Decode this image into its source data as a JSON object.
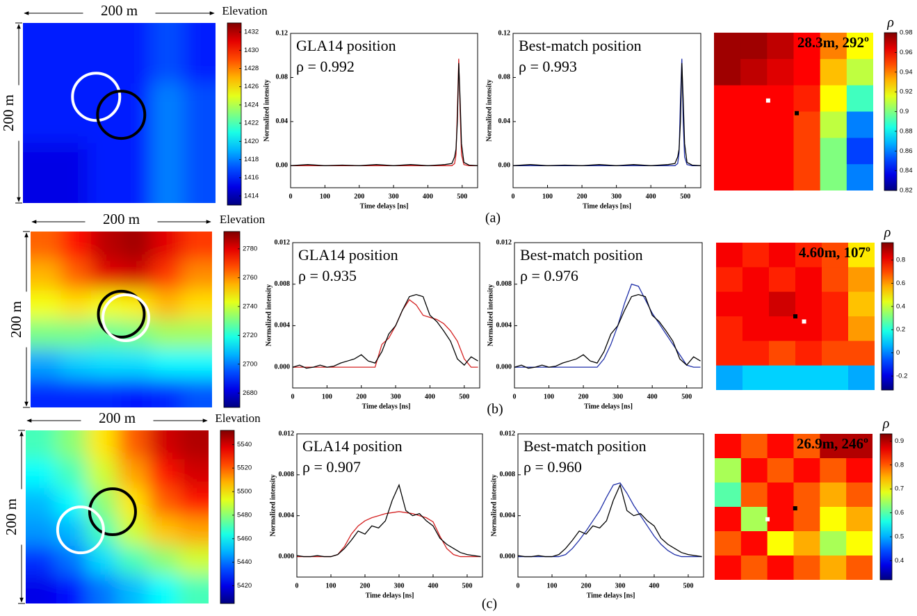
{
  "panel_labels": [
    "(a)",
    "(b)",
    "(c)"
  ],
  "chart_data": [
    {
      "type": "heatmap",
      "colormap": "jet",
      "x_label": "200 m",
      "y_label": "200 m",
      "colorbar_label": "Elevation",
      "zlim": [
        1413,
        1433
      ],
      "zticks": [
        1414,
        1416,
        1418,
        1420,
        1422,
        1424,
        1426,
        1428,
        1430,
        1432
      ],
      "z": [
        [
          1416,
          1416,
          1416,
          1416,
          1417,
          1416
        ],
        [
          1416,
          1416,
          1416,
          1416,
          1417,
          1416
        ],
        [
          1416,
          1416,
          1416,
          1416,
          1418,
          1417
        ],
        [
          1416,
          1416,
          1416,
          1416,
          1418,
          1417
        ],
        [
          1415,
          1415,
          1416,
          1416,
          1418,
          1417
        ],
        [
          1415,
          1415,
          1416,
          1416,
          1418,
          1417
        ]
      ]
    },
    {
      "type": "line",
      "title": "GLA14 position",
      "subtitle": "ρ = 0.992",
      "x_label": "Time delays [ns]",
      "y_label": "Normalized intensity",
      "xlim": [
        0,
        545
      ],
      "xticks": [
        0,
        100,
        200,
        300,
        400,
        500
      ],
      "ylim": [
        -0.02,
        0.12
      ],
      "yticks": [
        {
          "value": 0,
          "label": "0.00"
        },
        0.04,
        0.08,
        0.12
      ],
      "x": [
        0,
        50,
        100,
        150,
        200,
        250,
        300,
        350,
        400,
        450,
        470,
        478,
        482,
        486,
        490,
        494,
        498,
        505,
        520,
        545
      ],
      "series": [
        {
          "color": "#000000",
          "values": [
            0,
            0.001,
            0,
            0.0005,
            0,
            0.001,
            0,
            0.001,
            0,
            0.001,
            0.002,
            0.008,
            0.015,
            0.04,
            0.093,
            0.06,
            0.02,
            0.003,
            0.0005,
            0
          ]
        },
        {
          "color": "#d42020",
          "values": [
            0,
            0,
            0,
            0,
            0,
            0,
            0,
            0,
            0,
            0,
            0,
            0.002,
            0.01,
            0.05,
            0.097,
            0.05,
            0.01,
            0.001,
            0,
            0
          ]
        }
      ]
    },
    {
      "type": "line",
      "title": "Best-match position",
      "subtitle": "ρ = 0.993",
      "x_label": "Time delays [ns]",
      "y_label": "Normalized intensity",
      "xlim": [
        0,
        545
      ],
      "xticks": [
        0,
        100,
        200,
        300,
        400,
        500
      ],
      "ylim": [
        -0.02,
        0.12
      ],
      "yticks": [
        {
          "value": 0,
          "label": "0.00"
        },
        0.04,
        0.08,
        0.12
      ],
      "x": [
        0,
        50,
        100,
        150,
        200,
        250,
        300,
        350,
        400,
        450,
        470,
        478,
        482,
        486,
        490,
        494,
        498,
        505,
        520,
        545
      ],
      "series": [
        {
          "color": "#000000",
          "values": [
            0,
            0.001,
            0,
            0.0005,
            0,
            0.001,
            0,
            0.001,
            0,
            0.001,
            0.002,
            0.008,
            0.015,
            0.04,
            0.093,
            0.06,
            0.02,
            0.003,
            0.0005,
            0
          ]
        },
        {
          "color": "#1f2fa8",
          "values": [
            0,
            0,
            0,
            0,
            0,
            0,
            0,
            0,
            0,
            0,
            0,
            0.002,
            0.012,
            0.06,
            0.097,
            0.04,
            0.008,
            0.001,
            0,
            0
          ]
        }
      ]
    },
    {
      "type": "heatmap",
      "colormap": "jet",
      "colorbar_label": "ρ",
      "annotation": "28.3m, 292º",
      "zlim": [
        0.82,
        0.98
      ],
      "zticks": [
        0.82,
        0.84,
        0.86,
        0.88,
        0.9,
        0.92,
        0.94,
        0.96,
        0.98
      ],
      "z": [
        [
          0.975,
          0.975,
          0.97,
          0.96,
          0.94,
          0.92
        ],
        [
          0.975,
          0.97,
          0.965,
          0.96,
          0.93,
          0.91
        ],
        [
          0.96,
          0.96,
          0.96,
          0.955,
          0.92,
          0.89
        ],
        [
          0.96,
          0.96,
          0.96,
          0.95,
          0.91,
          0.86
        ],
        [
          0.96,
          0.96,
          0.96,
          0.95,
          0.9,
          0.85
        ],
        [
          0.96,
          0.96,
          0.96,
          0.95,
          0.9,
          0.86
        ]
      ]
    },
    {
      "type": "heatmap",
      "colormap": "jet",
      "x_label": "200 m",
      "y_label": "200 m",
      "colorbar_label": "Elevation",
      "zlim": [
        2670,
        2792
      ],
      "zticks": [
        2680,
        2700,
        2720,
        2740,
        2760,
        2780
      ],
      "z": [
        [
          2765,
          2775,
          2785,
          2788,
          2780,
          2770
        ],
        [
          2755,
          2765,
          2780,
          2782,
          2770,
          2760
        ],
        [
          2745,
          2750,
          2745,
          2748,
          2755,
          2750
        ],
        [
          2730,
          2730,
          2728,
          2730,
          2735,
          2735
        ],
        [
          2705,
          2710,
          2712,
          2712,
          2715,
          2715
        ],
        [
          2690,
          2690,
          2690,
          2688,
          2690,
          2695
        ]
      ]
    },
    {
      "type": "line",
      "title": "GLA14 position",
      "subtitle": "ρ = 0.935",
      "x_label": "Time delays [ns]",
      "y_label": "Normalized intensity",
      "xlim": [
        0,
        545
      ],
      "xticks": [
        0,
        100,
        200,
        300,
        400,
        500
      ],
      "ylim": [
        -0.002,
        0.012
      ],
      "yticks": [
        {
          "value": 0,
          "label": "0.000"
        },
        0.004,
        0.008,
        0.012
      ],
      "x": [
        0,
        20,
        40,
        60,
        80,
        100,
        120,
        140,
        160,
        180,
        200,
        220,
        240,
        260,
        280,
        300,
        320,
        340,
        360,
        380,
        400,
        420,
        440,
        460,
        480,
        500,
        520,
        540
      ],
      "series": [
        {
          "color": "#000000",
          "values": [
            0,
            0.0002,
            -0.0001,
            0,
            0.0002,
            0,
            0.0001,
            0.0004,
            0.0006,
            0.0008,
            0.0012,
            0.0006,
            0.0004,
            0.0015,
            0.0032,
            0.004,
            0.0055,
            0.0068,
            0.007,
            0.0068,
            0.005,
            0.0044,
            0.0035,
            0.0025,
            0.0008,
            0.0002,
            0.001,
            0.0006
          ]
        },
        {
          "color": "#d42020",
          "values": [
            0,
            0,
            0,
            0,
            0,
            0,
            0,
            0,
            0,
            0,
            0,
            0,
            0,
            0.0022,
            0.0028,
            0.004,
            0.0055,
            0.0065,
            0.006,
            0.005,
            0.0048,
            0.0046,
            0.0042,
            0.0035,
            0.0025,
            0.0008,
            0,
            0
          ]
        }
      ]
    },
    {
      "type": "line",
      "title": "Best-match position",
      "subtitle": "ρ = 0.976",
      "x_label": "Time delays [ns]",
      "y_label": "Normalized intensity",
      "xlim": [
        0,
        545
      ],
      "xticks": [
        0,
        100,
        200,
        300,
        400,
        500
      ],
      "ylim": [
        -0.002,
        0.012
      ],
      "yticks": [
        {
          "value": 0,
          "label": "0.000"
        },
        0.004,
        0.008,
        0.012
      ],
      "x": [
        0,
        20,
        40,
        60,
        80,
        100,
        120,
        140,
        160,
        180,
        200,
        220,
        240,
        260,
        280,
        300,
        320,
        340,
        360,
        380,
        400,
        420,
        440,
        460,
        480,
        500,
        520,
        540
      ],
      "series": [
        {
          "color": "#000000",
          "values": [
            0,
            0.0002,
            -0.0001,
            0,
            0.0002,
            0,
            0.0001,
            0.0004,
            0.0006,
            0.0008,
            0.0012,
            0.0006,
            0.0004,
            0.0015,
            0.0032,
            0.004,
            0.0055,
            0.0068,
            0.007,
            0.0068,
            0.005,
            0.0044,
            0.0035,
            0.0025,
            0.0008,
            0.0002,
            0.001,
            0.0006
          ]
        },
        {
          "color": "#1f2fa8",
          "values": [
            0,
            0,
            0,
            0,
            0,
            0,
            0,
            0,
            0,
            0,
            0,
            0,
            0,
            0.0008,
            0.0022,
            0.004,
            0.0062,
            0.008,
            0.0078,
            0.0065,
            0.0052,
            0.0042,
            0.0032,
            0.0022,
            0.0012,
            0.0002,
            0,
            0
          ]
        }
      ]
    },
    {
      "type": "heatmap",
      "colormap": "jet",
      "colorbar_label": "ρ",
      "annotation": "4.60m, 107º",
      "zlim": [
        -0.32,
        0.95
      ],
      "zticks": [
        -0.2,
        0,
        0.2,
        0.4,
        0.6,
        0.8
      ],
      "z": [
        [
          0.8,
          0.75,
          0.8,
          0.75,
          0.7,
          0.5
        ],
        [
          0.75,
          0.8,
          0.75,
          0.8,
          0.7,
          0.6
        ],
        [
          0.8,
          0.8,
          0.85,
          0.8,
          0.75,
          0.55
        ],
        [
          0.75,
          0.8,
          0.8,
          0.8,
          0.75,
          0.6
        ],
        [
          0.75,
          0.75,
          0.7,
          0.75,
          0.7,
          0.7
        ],
        [
          0.05,
          0.1,
          0.1,
          0.1,
          0.1,
          0.05
        ]
      ]
    },
    {
      "type": "heatmap",
      "colormap": "jet",
      "x_label": "200 m",
      "y_label": "200 m",
      "colorbar_label": "Elevation",
      "zlim": [
        5405,
        5552
      ],
      "zticks": [
        5420,
        5440,
        5460,
        5480,
        5500,
        5520,
        5540
      ],
      "z": [
        [
          5470,
          5480,
          5500,
          5520,
          5540,
          5545
        ],
        [
          5460,
          5470,
          5490,
          5510,
          5530,
          5540
        ],
        [
          5450,
          5460,
          5480,
          5500,
          5520,
          5530
        ],
        [
          5445,
          5450,
          5470,
          5490,
          5505,
          5510
        ],
        [
          5430,
          5440,
          5455,
          5470,
          5480,
          5490
        ],
        [
          5420,
          5425,
          5440,
          5450,
          5460,
          5470
        ]
      ]
    },
    {
      "type": "line",
      "title": "GLA14 position",
      "subtitle": "ρ = 0.907",
      "x_label": "Time delays [ns]",
      "y_label": "Normalized intensity",
      "xlim": [
        0,
        545
      ],
      "xticks": [
        0,
        100,
        200,
        300,
        400,
        500
      ],
      "ylim": [
        -0.002,
        0.012
      ],
      "yticks": [
        {
          "value": 0,
          "label": "0.000"
        },
        0.004,
        0.008,
        0.012
      ],
      "x": [
        0,
        20,
        40,
        60,
        80,
        100,
        120,
        140,
        160,
        180,
        200,
        220,
        240,
        260,
        280,
        300,
        320,
        340,
        360,
        380,
        400,
        420,
        440,
        460,
        480,
        500,
        520,
        540
      ],
      "series": [
        {
          "color": "#000000",
          "values": [
            0.0001,
            0,
            0,
            0.0001,
            0,
            0,
            0.0002,
            0.0008,
            0.0016,
            0.0025,
            0.0022,
            0.003,
            0.0028,
            0.0035,
            0.0055,
            0.007,
            0.0045,
            0.004,
            0.0042,
            0.0035,
            0.003,
            0.0018,
            0.0012,
            0.0008,
            0.0004,
            0.0002,
            0.0001,
            0
          ]
        },
        {
          "color": "#d42020",
          "values": [
            0,
            0,
            0,
            0,
            0,
            0,
            0.0002,
            0.001,
            0.0022,
            0.003,
            0.0035,
            0.0038,
            0.004,
            0.0042,
            0.0043,
            0.0044,
            0.0043,
            0.0042,
            0.004,
            0.0038,
            0.0034,
            0.002,
            0.0008,
            0.0002,
            0,
            0,
            0,
            0
          ]
        }
      ]
    },
    {
      "type": "line",
      "title": "Best-match position",
      "subtitle": "ρ = 0.960",
      "x_label": "Time delays [ns]",
      "y_label": "Normalized intensity",
      "xlim": [
        0,
        545
      ],
      "xticks": [
        0,
        100,
        200,
        300,
        400,
        500
      ],
      "ylim": [
        -0.002,
        0.012
      ],
      "yticks": [
        {
          "value": 0,
          "label": "0.000"
        },
        0.004,
        0.008,
        0.012
      ],
      "x": [
        0,
        20,
        40,
        60,
        80,
        100,
        120,
        140,
        160,
        180,
        200,
        220,
        240,
        260,
        280,
        300,
        320,
        340,
        360,
        380,
        400,
        420,
        440,
        460,
        480,
        500,
        520,
        540
      ],
      "series": [
        {
          "color": "#000000",
          "values": [
            0.0001,
            0,
            0,
            0.0001,
            0,
            0,
            0.0002,
            0.0008,
            0.0016,
            0.0025,
            0.0022,
            0.003,
            0.0028,
            0.0035,
            0.0055,
            0.007,
            0.0045,
            0.004,
            0.0042,
            0.0035,
            0.003,
            0.0018,
            0.0012,
            0.0008,
            0.0004,
            0.0002,
            0.0001,
            0
          ]
        },
        {
          "color": "#1f2fa8",
          "values": [
            0,
            0,
            0,
            0,
            0,
            0,
            0,
            0.0002,
            0.0008,
            0.0016,
            0.0025,
            0.0035,
            0.0045,
            0.0058,
            0.007,
            0.0072,
            0.0062,
            0.005,
            0.004,
            0.003,
            0.002,
            0.0012,
            0.0006,
            0.0002,
            0,
            0,
            0,
            0
          ]
        }
      ]
    },
    {
      "type": "heatmap",
      "colormap": "jet",
      "colorbar_label": "ρ",
      "annotation": "26.9m, 246º",
      "zlim": [
        0.32,
        0.93
      ],
      "zticks": [
        0.4,
        0.5,
        0.6,
        0.7,
        0.8,
        0.9
      ],
      "z": [
        [
          0.85,
          0.8,
          0.85,
          0.8,
          0.9,
          0.9
        ],
        [
          0.65,
          0.85,
          0.8,
          0.85,
          0.8,
          0.85
        ],
        [
          0.6,
          0.8,
          0.85,
          0.8,
          0.75,
          0.8
        ],
        [
          0.85,
          0.65,
          0.85,
          0.8,
          0.7,
          0.75
        ],
        [
          0.8,
          0.85,
          0.7,
          0.75,
          0.65,
          0.7
        ],
        [
          0.85,
          0.8,
          0.85,
          0.8,
          0.75,
          0.8
        ]
      ]
    }
  ]
}
